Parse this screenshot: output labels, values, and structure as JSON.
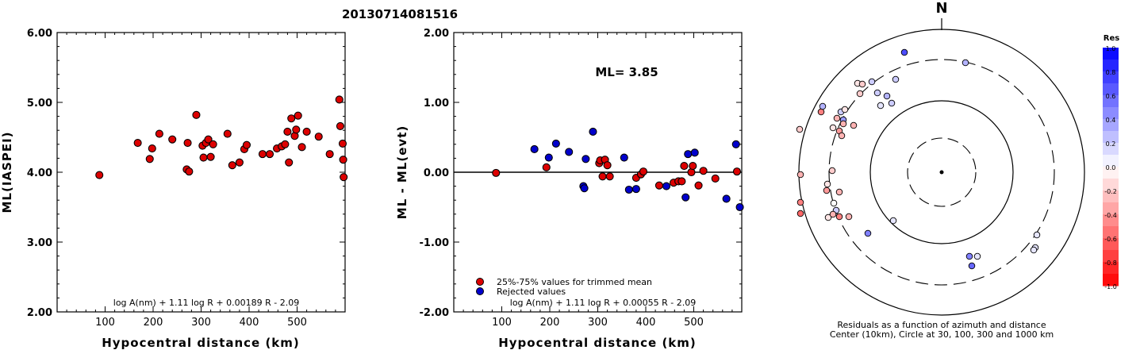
{
  "event_id": "20130714081516",
  "colors": {
    "accepted": "#dd0000",
    "rejected": "#0000cc",
    "outline": "#000000"
  },
  "chart_data": [
    {
      "type": "scatter",
      "xlabel": "Hypocentral distance (km)",
      "ylabel": "ML(IASPEI)",
      "xlim": [
        0,
        600
      ],
      "ylim": [
        2.0,
        6.0
      ],
      "xticks": [
        "100",
        "200",
        "300",
        "400",
        "500"
      ],
      "yticks": [
        "2.00",
        "3.00",
        "4.00",
        "5.00",
        "6.00"
      ],
      "formula": "log A(nm) + 1.11 log R + 0.00189 R - 2.09",
      "series": [
        {
          "points": [
            [
              88,
              3.96
            ],
            [
              168,
              4.42
            ],
            [
              193,
              4.19
            ],
            [
              198,
              4.34
            ],
            [
              213,
              4.55
            ],
            [
              240,
              4.47
            ],
            [
              270,
              4.04
            ],
            [
              272,
              4.42
            ],
            [
              275,
              4.01
            ],
            [
              290,
              4.82
            ],
            [
              303,
              4.38
            ],
            [
              305,
              4.21
            ],
            [
              310,
              4.42
            ],
            [
              315,
              4.47
            ],
            [
              320,
              4.22
            ],
            [
              325,
              4.4
            ],
            [
              355,
              4.55
            ],
            [
              365,
              4.1
            ],
            [
              380,
              4.14
            ],
            [
              390,
              4.33
            ],
            [
              395,
              4.39
            ],
            [
              428,
              4.26
            ],
            [
              443,
              4.26
            ],
            [
              458,
              4.34
            ],
            [
              468,
              4.37
            ],
            [
              475,
              4.4
            ],
            [
              480,
              4.58
            ],
            [
              483,
              4.14
            ],
            [
              488,
              4.77
            ],
            [
              495,
              4.52
            ],
            [
              498,
              4.61
            ],
            [
              502,
              4.81
            ],
            [
              510,
              4.36
            ],
            [
              520,
              4.58
            ],
            [
              545,
              4.51
            ],
            [
              568,
              4.26
            ],
            [
              588,
              5.04
            ],
            [
              590,
              4.66
            ],
            [
              595,
              4.41
            ],
            [
              596,
              4.18
            ],
            [
              597,
              3.93
            ]
          ]
        }
      ]
    },
    {
      "type": "scatter",
      "xlabel": "Hypocentral distance (km)",
      "ylabel": "ML - ML(evt)",
      "xlim": [
        0,
        600
      ],
      "ylim": [
        -2.0,
        2.0
      ],
      "xticks": [
        "100",
        "200",
        "300",
        "400",
        "500"
      ],
      "yticks": [
        "-2.00",
        "-1.00",
        "0.00",
        "1.00",
        "2.00"
      ],
      "annotation": "ML= 3.85",
      "formula": "log A(nm) + 1.11 log R + 0.00055 R - 2.09",
      "legend": [
        "25%-75% values for trimmed mean",
        "Rejected values"
      ],
      "series": [
        {
          "name": "25%-75% values for trimmed mean",
          "points": [
            [
              88,
              -0.01
            ],
            [
              193,
              0.07
            ],
            [
              303,
              0.13
            ],
            [
              305,
              0.17
            ],
            [
              310,
              -0.06
            ],
            [
              315,
              0.18
            ],
            [
              320,
              0.1
            ],
            [
              325,
              -0.06
            ],
            [
              380,
              -0.08
            ],
            [
              390,
              -0.03
            ],
            [
              395,
              0.01
            ],
            [
              428,
              -0.19
            ],
            [
              458,
              -0.15
            ],
            [
              468,
              -0.13
            ],
            [
              475,
              -0.13
            ],
            [
              480,
              0.09
            ],
            [
              495,
              0.0
            ],
            [
              498,
              0.09
            ],
            [
              510,
              -0.19
            ],
            [
              520,
              0.02
            ],
            [
              545,
              -0.09
            ],
            [
              590,
              0.01
            ]
          ]
        },
        {
          "name": "Rejected values",
          "points": [
            [
              168,
              0.33
            ],
            [
              198,
              0.21
            ],
            [
              213,
              0.41
            ],
            [
              240,
              0.29
            ],
            [
              270,
              -0.2
            ],
            [
              272,
              -0.23
            ],
            [
              275,
              0.19
            ],
            [
              290,
              0.58
            ],
            [
              355,
              0.21
            ],
            [
              365,
              -0.25
            ],
            [
              380,
              -0.24
            ],
            [
              443,
              -0.2
            ],
            [
              483,
              -0.36
            ],
            [
              488,
              0.26
            ],
            [
              502,
              0.28
            ],
            [
              568,
              -0.38
            ],
            [
              588,
              0.4
            ],
            [
              596,
              -0.5
            ]
          ]
        }
      ]
    },
    {
      "type": "scatter",
      "title": "N",
      "caption": [
        "Residuals as a function of azimuth and distance",
        "Center (10km), Circle at 30, 100, 300 and 1000 km"
      ],
      "colorbar_title": "Res",
      "colorbar_ticks": [
        "1.0",
        "0.8",
        "0.6",
        "0.4",
        "0.2",
        "0.0",
        "-0.2",
        "-0.4",
        "-0.6",
        "-0.8",
        "-1.0"
      ],
      "points": [
        [
          -47,
          -151,
          0.7
        ],
        [
          30,
          -138,
          0.3
        ],
        [
          -58,
          -117,
          0.2
        ],
        [
          -88,
          -114,
          0.2
        ],
        [
          -63,
          -87,
          0.2
        ],
        [
          -103,
          -99,
          -0.2
        ],
        [
          -106,
          -112,
          -0.1
        ],
        [
          -100,
          -111,
          -0.2
        ],
        [
          -69,
          -96,
          0.3
        ],
        [
          -81,
          -100,
          0.2
        ],
        [
          -77,
          -84,
          0.1
        ],
        [
          -152,
          -76,
          -0.5
        ],
        [
          -150,
          -83,
          0.3
        ],
        [
          -132,
          -68,
          -0.3
        ],
        [
          -127,
          -76,
          0.2
        ],
        [
          -124,
          -66,
          0.4
        ],
        [
          -124,
          -61,
          -0.3
        ],
        [
          -129,
          -52,
          -0.4
        ],
        [
          -126,
          -46,
          -0.3
        ],
        [
          -111,
          -59,
          -0.3
        ],
        [
          -122,
          -79,
          -0.1
        ],
        [
          -137,
          -56,
          -0.1
        ],
        [
          -179,
          -54,
          -0.2
        ],
        [
          -138,
          -2,
          -0.2
        ],
        [
          -144,
          15,
          -0.1
        ],
        [
          -129,
          25,
          -0.3
        ],
        [
          -145,
          23,
          -0.4
        ],
        [
          -178,
          3,
          -0.3
        ],
        [
          -136,
          39,
          0.0
        ],
        [
          -143,
          57,
          -0.1
        ],
        [
          -133,
          48,
          0.2
        ],
        [
          -137,
          53,
          -0.3
        ],
        [
          -129,
          56,
          -0.5
        ],
        [
          -117,
          56,
          -0.3
        ],
        [
          -178,
          38,
          -0.5
        ],
        [
          -178,
          52,
          -0.6
        ],
        [
          -61,
          61,
          0.1
        ],
        [
          -93,
          77,
          0.5
        ],
        [
          35,
          106,
          0.5
        ],
        [
          45,
          106,
          0.1
        ],
        [
          38,
          118,
          0.6
        ],
        [
          120,
          79,
          0.1
        ],
        [
          118,
          95,
          0.1
        ],
        [
          116,
          98,
          0.1
        ]
      ]
    }
  ]
}
